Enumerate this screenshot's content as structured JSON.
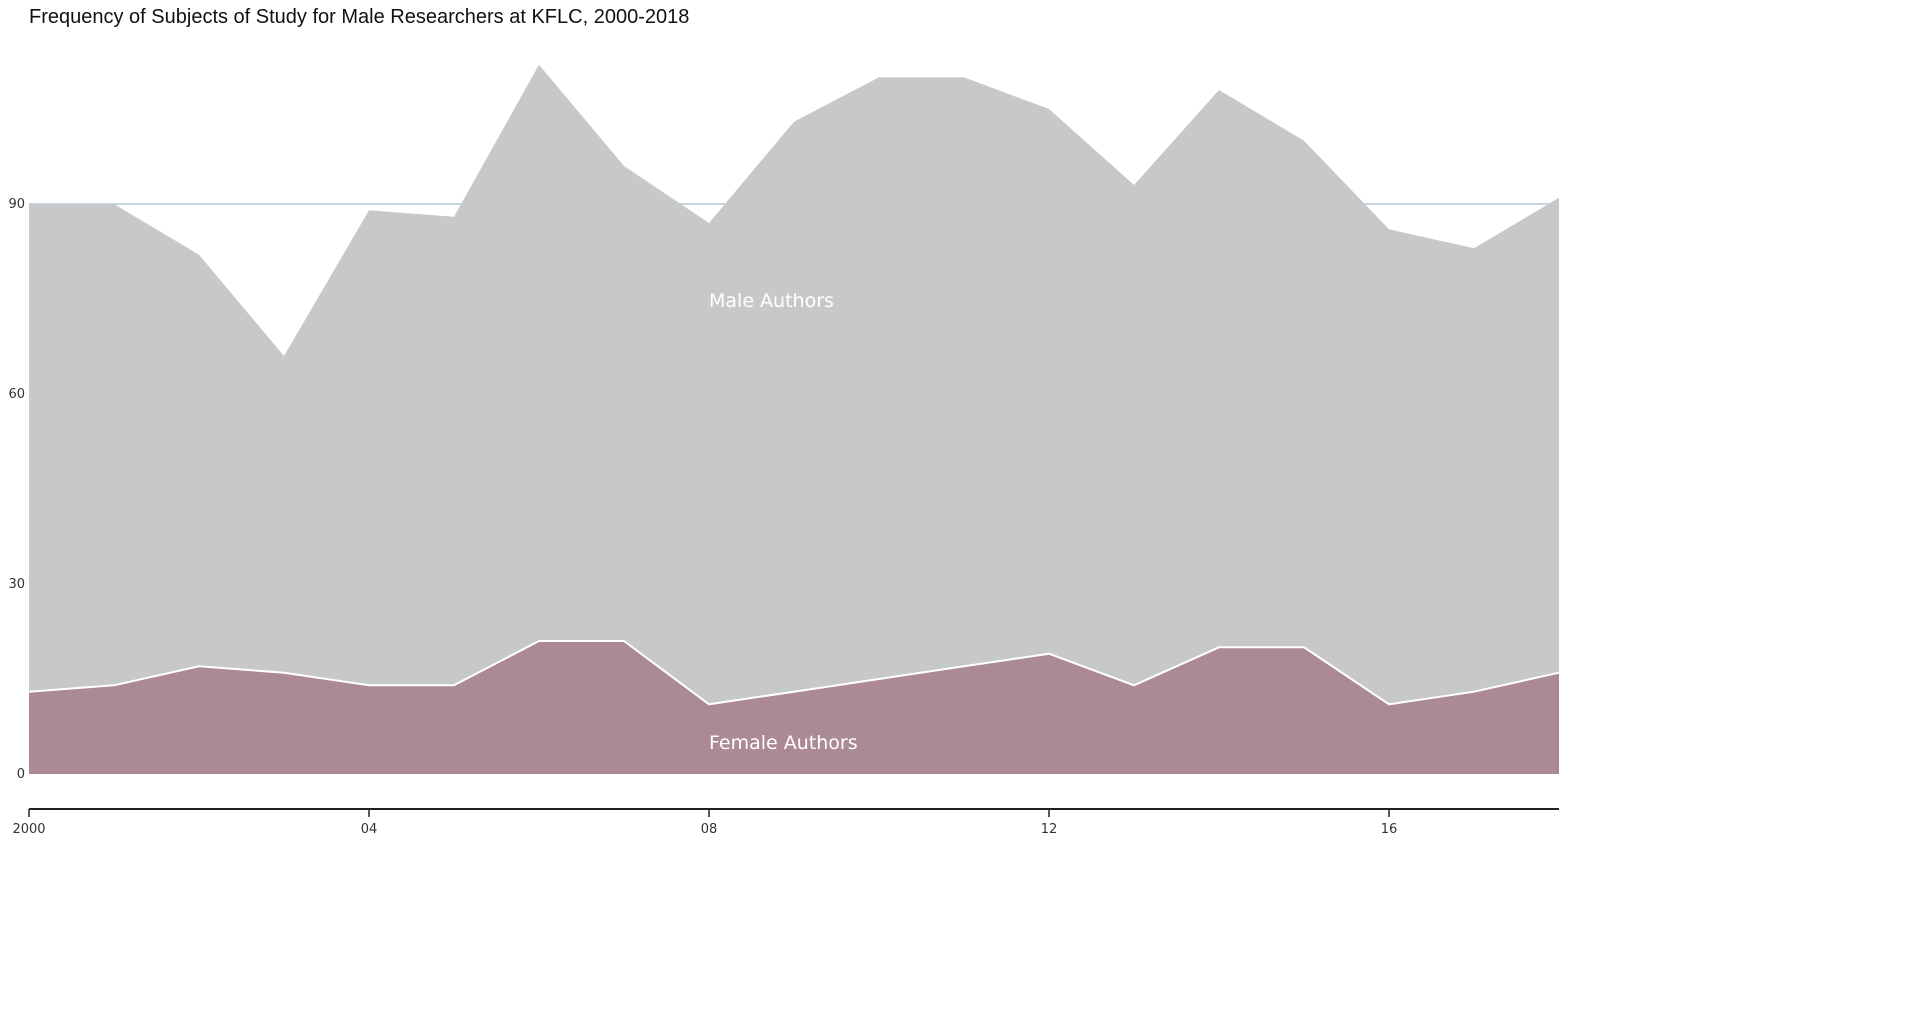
{
  "chart_data": {
    "type": "area",
    "stacked": true,
    "title": "Frequency of Subjects of Study for Male Researchers at KFLC, 2000-2018",
    "x": [
      2000,
      2001,
      2002,
      2003,
      2004,
      2005,
      2006,
      2007,
      2008,
      2009,
      2010,
      2011,
      2012,
      2013,
      2014,
      2015,
      2016,
      2017,
      2018
    ],
    "series": [
      {
        "name": "Female Authors",
        "color": "#ac8a94",
        "values": [
          13,
          14,
          17,
          16,
          14,
          14,
          21,
          21,
          11,
          13,
          15,
          17,
          19,
          14,
          20,
          20,
          11,
          13,
          16
        ]
      },
      {
        "name": "Male Authors",
        "color": "#c7c8ca",
        "values": [
          77,
          76,
          65,
          50,
          75,
          74,
          91,
          75,
          76,
          90,
          95,
          93,
          86,
          79,
          88,
          80,
          75,
          70,
          75
        ]
      }
    ],
    "x_ticks": [
      {
        "value": 2000,
        "label": "2000"
      },
      {
        "value": 2004,
        "label": "04"
      },
      {
        "value": 2008,
        "label": "08"
      },
      {
        "value": 2012,
        "label": "12"
      },
      {
        "value": 2016,
        "label": "16"
      }
    ],
    "y_ticks": [
      0,
      30,
      60,
      90
    ],
    "xlim": [
      2000,
      2018
    ],
    "ylim": [
      0,
      120
    ],
    "reference_line": 90,
    "xlabel": "",
    "ylabel": "",
    "legend": "inline labels"
  }
}
